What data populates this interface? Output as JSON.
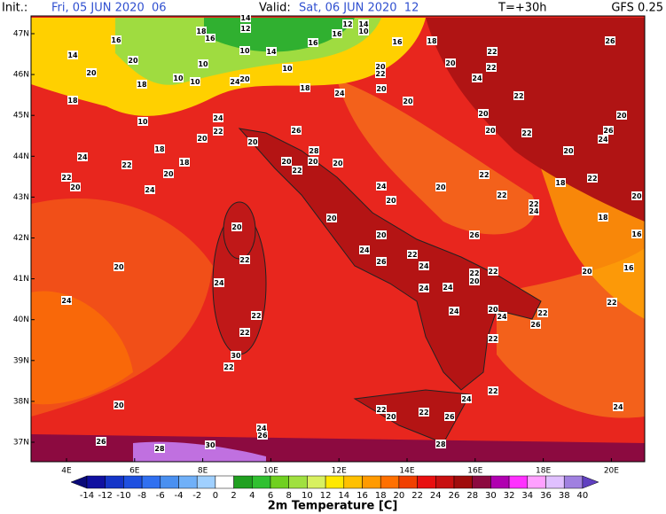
{
  "header": {
    "init_label": "Init.:",
    "init": "Fri, 05 JUN 2020  06",
    "valid_label": "Valid:",
    "valid": "Sat, 06 JUN 2020  12",
    "lead": "T=+30h",
    "model": "GFS 0.25"
  },
  "map": {
    "lat_labels": [
      "47N",
      "46N",
      "45N",
      "44N",
      "43N",
      "42N",
      "41N",
      "40N",
      "39N",
      "38N",
      "37N"
    ],
    "lon_labels": [
      "4E",
      "6E",
      "8E",
      "10E",
      "12E",
      "14E",
      "16E",
      "18E",
      "20E"
    ],
    "point_labels": [
      14,
      12,
      12,
      14,
      10,
      16,
      18,
      16,
      16,
      16,
      16,
      18,
      10,
      14,
      14,
      20,
      10,
      10,
      10,
      20,
      22,
      20,
      20,
      22,
      22,
      24,
      18,
      10,
      24,
      20,
      24,
      22,
      20,
      10,
      18,
      18,
      24,
      20,
      20,
      22,
      20,
      26,
      20,
      26,
      24,
      20,
      22,
      20,
      18,
      22,
      20,
      18,
      26,
      20,
      28,
      20,
      20,
      22,
      20,
      24,
      22,
      18,
      18,
      20,
      22,
      20,
      24,
      24,
      20,
      22,
      22,
      22,
      24,
      20,
      20,
      20,
      20,
      26,
      22,
      24,
      22,
      26,
      24,
      22,
      20,
      22,
      16,
      20,
      16,
      24,
      20,
      22,
      24,
      24,
      24,
      22,
      24,
      20,
      24,
      22,
      26,
      22,
      22,
      30,
      22,
      22,
      24,
      20,
      22,
      20,
      22,
      26,
      24,
      24,
      26,
      26,
      30,
      28,
      28
    ]
  },
  "legend": {
    "title": "2m Temperature [C]",
    "ticks": [
      -14,
      -12,
      -10,
      -8,
      -6,
      -4,
      -2,
      0,
      2,
      4,
      6,
      8,
      10,
      12,
      14,
      16,
      18,
      20,
      22,
      24,
      26,
      28,
      30,
      32,
      34,
      36,
      38,
      40
    ],
    "colors": [
      "#0a0a78",
      "#1010a0",
      "#1535c8",
      "#1e50e0",
      "#3070f0",
      "#4a90f0",
      "#70b0f8",
      "#a0d0ff",
      "#ffffff",
      "#20a020",
      "#30c030",
      "#70d020",
      "#a0e040",
      "#d8f060",
      "#ffe800",
      "#ffc000",
      "#ff9a00",
      "#ff7000",
      "#f04000",
      "#e81010",
      "#c81010",
      "#a00c0c",
      "#8c0a40",
      "#b000b0",
      "#ff30ff",
      "#ffa0ff",
      "#e0c0ff",
      "#a080e0",
      "#6040c0"
    ]
  }
}
